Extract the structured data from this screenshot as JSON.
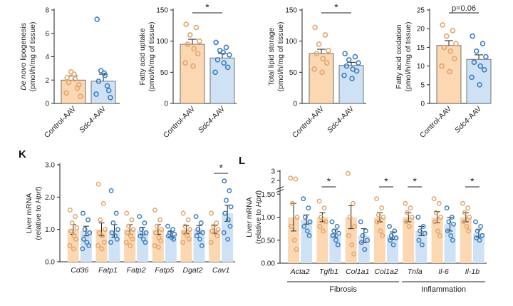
{
  "colors": {
    "control_fill": "#fbd7b2",
    "control_point": "#e4a56b",
    "sdc4_fill": "#cfe2f5",
    "sdc4_point": "#3d7fc4",
    "axis": "#222222"
  },
  "chart_data": [
    {
      "id": "lipogenesis",
      "type": "bar",
      "ylabel_parts": [
        {
          "t": "De novo",
          "i": true
        },
        {
          "t": " lipogenesis",
          "i": false
        }
      ],
      "ylabel2": "(pmol/h/mg of tissue)",
      "ylim": [
        0,
        8
      ],
      "yticks": [
        "0",
        "2",
        "4",
        "6",
        "8"
      ],
      "categories": [
        [
          {
            "t": "Control-AAV",
            "i": false
          }
        ],
        [
          {
            "t": "Sdc4",
            "i": true
          },
          {
            "t": "-AAV",
            "i": false
          }
        ]
      ],
      "values": [
        2.0,
        1.9
      ],
      "errors": [
        0.35,
        0.6
      ],
      "points": [
        [
          2.2,
          1.3,
          2.7,
          0.6,
          1.8,
          2.1,
          1.6,
          0.9,
          2.5
        ],
        [
          7.2,
          1.5,
          2.8,
          0.5,
          1.9,
          2.4,
          1.1,
          0.8,
          2.6
        ]
      ]
    },
    {
      "id": "fa_uptake",
      "type": "bar",
      "ylabel_parts": [
        {
          "t": "Fatty acid uptake",
          "i": false
        }
      ],
      "ylabel2": "(pmol/h/mg of tissue)",
      "ylim": [
        0,
        150
      ],
      "yticks": [
        "0",
        "50",
        "100",
        "150"
      ],
      "categories": [
        [
          {
            "t": "Control-AAV",
            "i": false
          }
        ],
        [
          {
            "t": "Sdc4",
            "i": true
          },
          {
            "t": "-AAV",
            "i": false
          }
        ]
      ],
      "values": [
        95,
        73
      ],
      "errors": [
        8,
        7
      ],
      "points": [
        [
          127,
          122,
          110,
          100,
          95,
          88,
          80,
          65,
          60
        ],
        [
          98,
          90,
          85,
          78,
          70,
          65,
          58,
          50,
          82
        ]
      ],
      "sig": "*"
    },
    {
      "id": "lipid_storage",
      "type": "bar",
      "ylabel_parts": [
        {
          "t": "Total lipid storage",
          "i": false
        }
      ],
      "ylabel2": "(pmol/h/mg of tissue)",
      "ylim": [
        0,
        150
      ],
      "yticks": [
        "0",
        "50",
        "100",
        "150"
      ],
      "categories": [
        [
          {
            "t": "Control-AAV",
            "i": false
          }
        ],
        [
          {
            "t": "Sdc4",
            "i": true
          },
          {
            "t": "-AAV",
            "i": false
          }
        ]
      ],
      "values": [
        80,
        61
      ],
      "errors": [
        7,
        5
      ],
      "points": [
        [
          122,
          110,
          95,
          85,
          80,
          72,
          65,
          55,
          50
        ],
        [
          80,
          75,
          70,
          65,
          60,
          55,
          52,
          45,
          40
        ]
      ],
      "sig": "*"
    },
    {
      "id": "fa_oxidation",
      "type": "bar",
      "ylabel_parts": [
        {
          "t": "Fatty acid oxidation",
          "i": false
        }
      ],
      "ylabel2": "(pmol/h/mg of tissue)",
      "ylim": [
        0,
        25
      ],
      "yticks": [
        "0",
        "5",
        "10",
        "15",
        "20",
        "25"
      ],
      "categories": [
        [
          {
            "t": "Control-AAV",
            "i": false
          }
        ],
        [
          {
            "t": "Sdc4",
            "i": true
          },
          {
            "t": "-AAV",
            "i": false
          }
        ]
      ],
      "values": [
        15.5,
        11.8
      ],
      "errors": [
        1.3,
        1.2
      ],
      "points": [
        [
          21,
          19.5,
          18,
          16,
          15,
          14,
          12,
          10,
          8.5
        ],
        [
          18,
          16,
          14,
          12.5,
          11,
          10,
          9,
          7,
          5
        ]
      ],
      "sig": "p=0.06"
    },
    {
      "id": "K",
      "panel": "K",
      "type": "bar",
      "ylabel_parts": [
        {
          "t": "Liver mRNA",
          "i": false
        }
      ],
      "ylabel2_parts": [
        {
          "t": "(relative to ",
          "i": false
        },
        {
          "t": "Hprt",
          "i": true
        },
        {
          "t": ")",
          "i": false
        }
      ],
      "ylim": [
        0,
        3
      ],
      "yticks": [
        "0.0",
        "1.0",
        "2.0",
        "3.0"
      ],
      "categories": [
        [
          {
            "t": "Cd36",
            "i": true
          }
        ],
        [
          {
            "t": "Fatp1",
            "i": true
          }
        ],
        [
          {
            "t": "Fatp2",
            "i": true
          }
        ],
        [
          {
            "t": "Fatp5",
            "i": true
          }
        ],
        [
          {
            "t": "Dgat2",
            "i": true
          }
        ],
        [
          {
            "t": "Cav1",
            "i": true
          }
        ]
      ],
      "series": [
        {
          "values": [
            1.0,
            1.0,
            1.0,
            1.0,
            1.0,
            1.0
          ],
          "errors": [
            0.15,
            0.2,
            0.15,
            0.15,
            0.12,
            0.12
          ],
          "points": [
            [
              1.6,
              1.4,
              1.2,
              1.05,
              0.95,
              0.8,
              0.7,
              0.5,
              0.4
            ],
            [
              2.4,
              1.8,
              1.3,
              1.0,
              0.9,
              0.8,
              0.6,
              0.5,
              0.4
            ],
            [
              1.5,
              1.3,
              1.1,
              1.0,
              0.9,
              0.8,
              0.7,
              0.6,
              0.5
            ],
            [
              1.6,
              1.3,
              1.1,
              1.0,
              0.9,
              0.75,
              0.65,
              0.5,
              0.45
            ],
            [
              1.5,
              1.3,
              1.1,
              1.0,
              0.9,
              0.8,
              0.7,
              0.6
            ],
            [
              1.5,
              1.2,
              1.1,
              1.0,
              0.95,
              0.9,
              0.8,
              0.6
            ]
          ]
        },
        {
          "values": [
            0.95,
            0.95,
            0.95,
            0.85,
            1.0,
            1.5
          ],
          "errors": [
            0.15,
            0.2,
            0.12,
            0.08,
            0.12,
            0.25
          ],
          "points": [
            [
              1.5,
              1.3,
              1.0,
              0.9,
              0.7,
              0.6,
              0.5,
              0.4
            ],
            [
              2.2,
              1.5,
              1.2,
              1.0,
              0.9,
              0.8,
              0.7,
              0.6
            ],
            [
              1.4,
              1.2,
              1.0,
              0.9,
              0.8,
              0.7,
              0.6
            ],
            [
              1.1,
              1.0,
              0.9,
              0.85,
              0.8,
              0.75,
              0.7
            ],
            [
              1.4,
              1.2,
              1.0,
              0.9,
              0.8,
              0.7,
              0.5
            ],
            [
              2.5,
              2.2,
              1.9,
              1.7,
              1.5,
              1.3,
              1.1,
              0.9,
              0.7
            ]
          ]
        }
      ],
      "sigs": [
        {
          "index": 5,
          "text": "*"
        }
      ]
    },
    {
      "id": "L",
      "panel": "L",
      "type": "bar",
      "ylabel_parts": [
        {
          "t": "Liver mRNA",
          "i": false
        }
      ],
      "ylabel2_parts": [
        {
          "t": "(relative to ",
          "i": false
        },
        {
          "t": "Hprt",
          "i": true
        },
        {
          "t": ")",
          "i": false
        }
      ],
      "ylim": [
        0,
        2.0
      ],
      "ybreak": true,
      "yticks": [
        {
          "v": 0,
          "l": "0.00"
        },
        {
          "v": 0.5,
          "l": "0.50"
        },
        {
          "v": 1.0,
          "l": "1.00"
        },
        {
          "v": 1.5,
          "l": "1.50"
        },
        {
          "v": 1.8,
          "l": "2"
        },
        {
          "v": 2.0,
          "l": "3"
        }
      ],
      "categories": [
        [
          {
            "t": "Acta2",
            "i": true
          }
        ],
        [
          {
            "t": "Tgfb1",
            "i": true
          }
        ],
        [
          {
            "t": "Col1a1",
            "i": true
          }
        ],
        [
          {
            "t": "Col1a2",
            "i": true
          }
        ],
        [
          {
            "t": "Tnfa",
            "i": true
          }
        ],
        [
          {
            "t": "Il-6",
            "i": true
          }
        ],
        [
          {
            "t": "Il-1b",
            "i": true
          }
        ]
      ],
      "series": [
        {
          "values": [
            1.0,
            1.0,
            1.0,
            1.0,
            1.0,
            1.0,
            1.0
          ],
          "errors": [
            0.3,
            0.1,
            0.25,
            0.1,
            0.1,
            0.12,
            0.1
          ],
          "points": [
            [
              1.85,
              1.83,
              1.3,
              1.0,
              0.8,
              0.5,
              0.3
            ],
            [
              1.35,
              1.2,
              1.0,
              0.9,
              0.8,
              0.7
            ],
            [
              1.95,
              1.3,
              1.0,
              0.8,
              0.6,
              0.4,
              0.2
            ],
            [
              1.4,
              1.2,
              1.05,
              1.0,
              0.9,
              0.7,
              0.6
            ],
            [
              1.3,
              1.2,
              1.1,
              1.0,
              0.9,
              0.8
            ],
            [
              1.4,
              1.3,
              1.1,
              1.0,
              0.9,
              0.7,
              0.6
            ],
            [
              1.3,
              1.2,
              1.1,
              1.0,
              0.9,
              0.8,
              0.7
            ]
          ]
        },
        {
          "values": [
            0.95,
            0.65,
            0.6,
            0.6,
            0.7,
            0.85,
            0.65
          ],
          "errors": [
            0.1,
            0.08,
            0.15,
            0.08,
            0.1,
            0.15,
            0.08
          ],
          "points": [
            [
              1.4,
              1.2,
              1.0,
              0.9,
              0.8,
              0.7,
              0.6
            ],
            [
              0.9,
              0.8,
              0.7,
              0.65,
              0.6,
              0.5,
              0.4
            ],
            [
              0.9,
              0.7,
              0.6,
              0.5,
              0.45,
              0.3
            ],
            [
              0.8,
              0.7,
              0.6,
              0.55,
              0.5,
              0.4
            ],
            [
              1.0,
              0.8,
              0.7,
              0.65,
              0.5,
              0.4
            ],
            [
              1.2,
              1.0,
              0.9,
              0.85,
              0.7,
              0.6,
              0.5
            ],
            [
              0.9,
              0.8,
              0.7,
              0.6,
              0.55,
              0.5
            ]
          ]
        }
      ],
      "sigs": [
        {
          "index": 1,
          "text": "*"
        },
        {
          "index": 3,
          "text": "*"
        },
        {
          "index": 4,
          "text": "*"
        },
        {
          "index": 6,
          "text": "*"
        }
      ],
      "groups": [
        {
          "label": "Fibrosis",
          "from": 0,
          "to": 3
        },
        {
          "label": "Inflammation",
          "from": 4,
          "to": 6
        }
      ]
    }
  ]
}
